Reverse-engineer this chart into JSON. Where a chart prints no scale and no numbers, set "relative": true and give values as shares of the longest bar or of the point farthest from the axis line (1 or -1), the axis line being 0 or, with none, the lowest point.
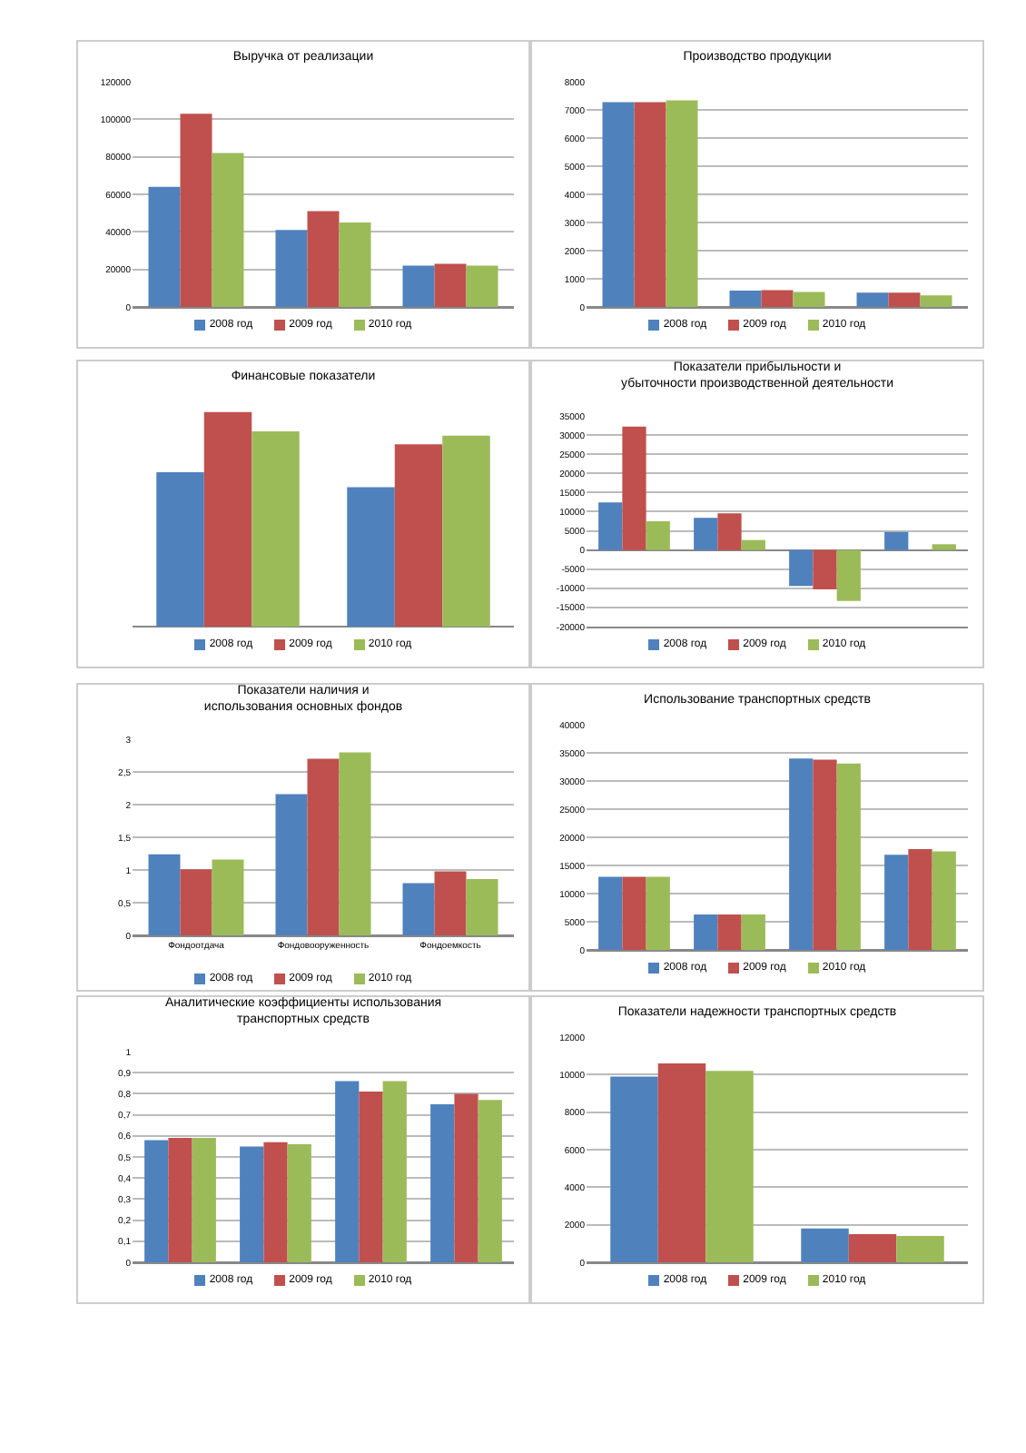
{
  "chart_data": [
    {
      "type": "bar",
      "title": "Выручка от реализации",
      "categories": [
        null,
        null,
        null
      ],
      "series": [
        {
          "name": "2008 год",
          "color": "#4f81bd",
          "values": [
            64000,
            41000,
            22000
          ]
        },
        {
          "name": "2009 год",
          "color": "#c0504d",
          "values": [
            103000,
            51000,
            23000
          ]
        },
        {
          "name": "2010 год",
          "color": "#9bbb59",
          "values": [
            82000,
            45000,
            22000
          ]
        }
      ],
      "ylim": [
        0,
        120000
      ],
      "yticks": [
        0,
        20000,
        40000,
        60000,
        80000,
        100000,
        120000
      ],
      "grid": "y",
      "legend": "bottom"
    },
    {
      "type": "bar",
      "title": "Производство продукции",
      "categories": [
        null,
        null,
        null
      ],
      "series": [
        {
          "name": "2008 год",
          "color": "#4f81bd",
          "values": [
            7270,
            580,
            510
          ]
        },
        {
          "name": "2009 год",
          "color": "#c0504d",
          "values": [
            7270,
            600,
            510
          ]
        },
        {
          "name": "2010 год",
          "color": "#9bbb59",
          "values": [
            7340,
            530,
            410
          ]
        }
      ],
      "ylim": [
        0,
        8000
      ],
      "yticks": [
        0,
        1000,
        2000,
        3000,
        4000,
        5000,
        6000,
        7000,
        8000
      ],
      "grid": "y",
      "legend": "bottom"
    },
    {
      "type": "bar",
      "title": "Финансовые показатели",
      "categories": [
        null,
        null
      ],
      "relative": true,
      "series": [
        {
          "name": "2008 год",
          "color": "#4f81bd",
          "values": [
            0.72,
            0.65
          ]
        },
        {
          "name": "2009 год",
          "color": "#c0504d",
          "values": [
            1,
            0.85
          ]
        },
        {
          "name": "2010 год",
          "color": "#9bbb59",
          "values": [
            0.91,
            0.89
          ]
        }
      ],
      "legend": "bottom"
    },
    {
      "type": "bar",
      "title": "Показатели прибыльности и убыточности производственной деятельности",
      "categories": [
        null,
        null,
        null,
        null
      ],
      "series": [
        {
          "name": "2008 год",
          "color": "#4f81bd",
          "values": [
            12400,
            8400,
            -9400,
            4700
          ]
        },
        {
          "name": "2009 год",
          "color": "#c0504d",
          "values": [
            32200,
            9600,
            -10300,
            0
          ]
        },
        {
          "name": "2010 год",
          "color": "#9bbb59",
          "values": [
            7500,
            2600,
            -13300,
            1500
          ]
        }
      ],
      "ylim": [
        -20000,
        35000
      ],
      "yticks": [
        -20000,
        -15000,
        -10000,
        -5000,
        0,
        5000,
        10000,
        15000,
        20000,
        25000,
        30000,
        35000
      ],
      "grid": "y",
      "legend": "bottom"
    },
    {
      "type": "bar",
      "title": "Показатели наличия и использования основных фондов",
      "categories": [
        "Фондоотдача",
        "Фондовооруженность",
        "Фондоемкость"
      ],
      "series": [
        {
          "name": "2008 год",
          "color": "#4f81bd",
          "values": [
            1.24,
            2.16,
            0.8
          ]
        },
        {
          "name": "2009 год",
          "color": "#c0504d",
          "values": [
            1.01,
            2.7,
            0.98
          ]
        },
        {
          "name": "2010 год",
          "color": "#9bbb59",
          "values": [
            1.16,
            2.8,
            0.86
          ]
        }
      ],
      "ylim": [
        0,
        3
      ],
      "yticks": [
        0,
        {
          "value": 0.5,
          "label": "0,5"
        },
        1,
        {
          "value": 1.5,
          "label": "1,5"
        },
        2,
        {
          "value": 2.5,
          "label": "2,5"
        },
        3
      ],
      "grid": "y",
      "legend": "bottom"
    },
    {
      "type": "bar",
      "title": "Использование транспортных средств",
      "categories": [
        null,
        null,
        null,
        null
      ],
      "series": [
        {
          "name": "2008 год",
          "color": "#4f81bd",
          "values": [
            13000,
            6300,
            34000,
            16900
          ]
        },
        {
          "name": "2009 год",
          "color": "#c0504d",
          "values": [
            13000,
            6300,
            33800,
            17900
          ]
        },
        {
          "name": "2010 год",
          "color": "#9bbb59",
          "values": [
            13000,
            6300,
            33100,
            17500
          ]
        }
      ],
      "ylim": [
        0,
        40000
      ],
      "yticks": [
        0,
        5000,
        10000,
        15000,
        20000,
        25000,
        30000,
        35000,
        40000
      ],
      "grid": "y",
      "legend": "bottom"
    },
    {
      "type": "bar",
      "title": "Аналитические коэффициенты использования транспортных средств",
      "categories": [
        null,
        null,
        null,
        null
      ],
      "series": [
        {
          "name": "2008 год",
          "color": "#4f81bd",
          "values": [
            0.58,
            0.55,
            0.86,
            0.75
          ]
        },
        {
          "name": "2009 год",
          "color": "#c0504d",
          "values": [
            0.59,
            0.57,
            0.81,
            0.8
          ]
        },
        {
          "name": "2010 год",
          "color": "#9bbb59",
          "values": [
            0.59,
            0.56,
            0.86,
            0.77
          ]
        }
      ],
      "ylim": [
        0,
        1
      ],
      "yticks": [
        0,
        {
          "value": 0.1,
          "label": "0,1"
        },
        {
          "value": 0.2,
          "label": "0,2"
        },
        {
          "value": 0.3,
          "label": "0,3"
        },
        {
          "value": 0.4,
          "label": "0,4"
        },
        {
          "value": 0.5,
          "label": "0,5"
        },
        {
          "value": 0.6,
          "label": "0,6"
        },
        {
          "value": 0.7,
          "label": "0,7"
        },
        {
          "value": 0.8,
          "label": "0,8"
        },
        {
          "value": 0.9,
          "label": "0,9"
        },
        1
      ],
      "grid": "y",
      "legend": "bottom"
    },
    {
      "type": "bar",
      "title": "Показатели надежности транспортных средств",
      "categories": [
        null,
        null
      ],
      "series": [
        {
          "name": "2008 год",
          "color": "#4f81bd",
          "values": [
            9900,
            1800
          ]
        },
        {
          "name": "2009 год",
          "color": "#c0504d",
          "values": [
            10600,
            1500
          ]
        },
        {
          "name": "2010 год",
          "color": "#9bbb59",
          "values": [
            10200,
            1400
          ]
        }
      ],
      "ylim": [
        0,
        12000
      ],
      "yticks": [
        0,
        2000,
        4000,
        6000,
        8000,
        10000,
        12000
      ],
      "grid": "y",
      "legend": "bottom"
    }
  ]
}
